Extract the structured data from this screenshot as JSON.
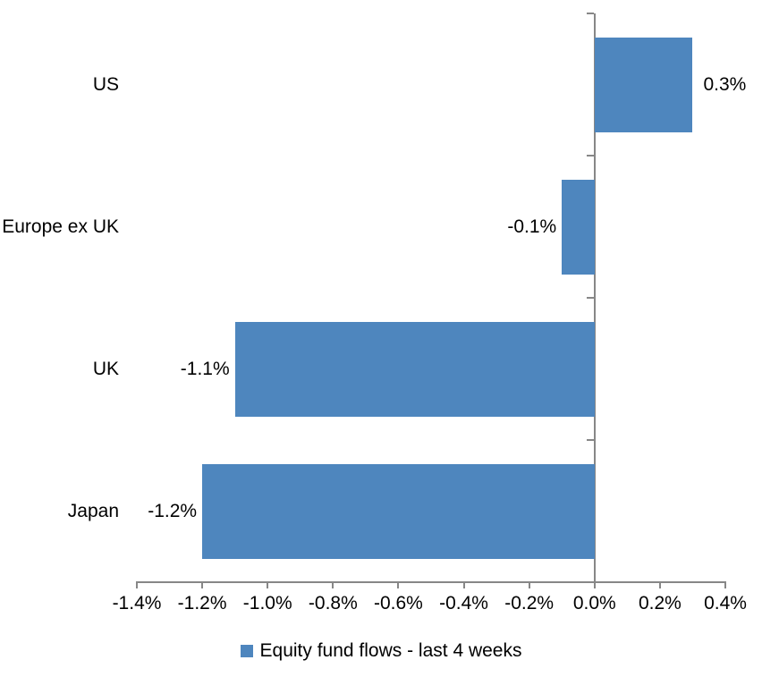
{
  "chart_data": {
    "type": "bar",
    "orientation": "horizontal",
    "title": "",
    "categories": [
      "US",
      "Europe ex UK",
      "UK",
      "Japan"
    ],
    "values": [
      0.3,
      -0.1,
      -1.1,
      -1.2
    ],
    "value_labels": [
      "0.3%",
      "-0.1%",
      "-1.1%",
      "-1.2%"
    ],
    "series_name": "Equity fund flows - last 4 weeks",
    "xlim": [
      -1.4,
      0.4
    ],
    "x_tick_step": 0.2,
    "x_tick_labels": [
      "-1.4%",
      "-1.2%",
      "-1.0%",
      "-0.8%",
      "-0.6%",
      "-0.4%",
      "-0.2%",
      "0.0%",
      "0.2%",
      "0.4%"
    ],
    "grid": false,
    "legend_position": "bottom",
    "bar_color": "#4E86BE",
    "axis_color": "#878787",
    "text_color": "#000000"
  },
  "legend": {
    "label": "Equity fund flows - last 4 weeks",
    "swatch_color": "#4E86BE"
  }
}
